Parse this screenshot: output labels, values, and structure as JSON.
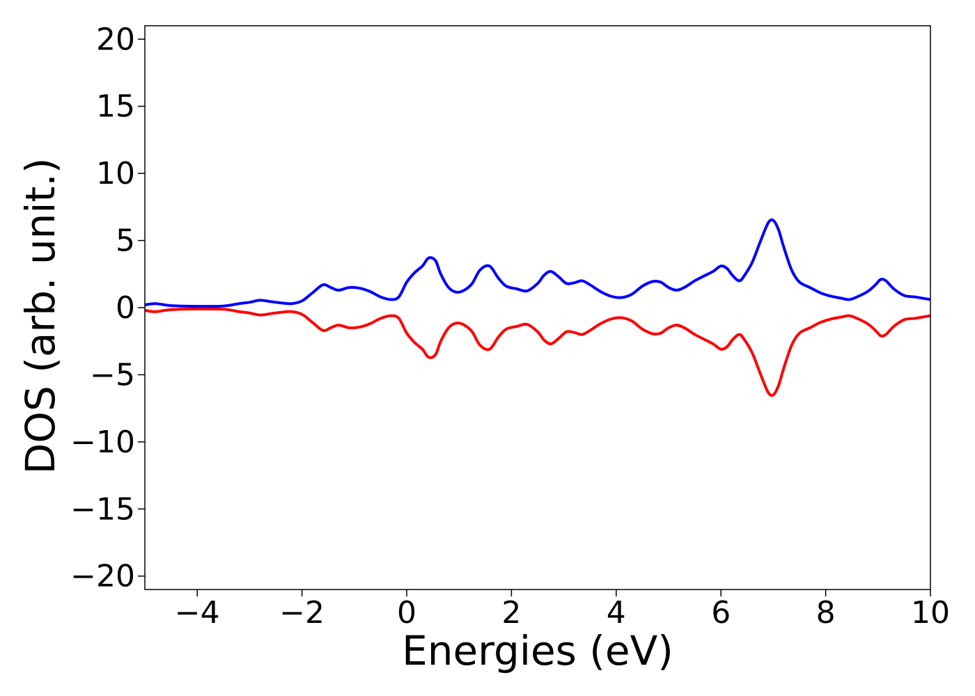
{
  "chart_data": {
    "type": "line",
    "xlabel": "Energies (eV)",
    "ylabel": "DOS (arb. unit.)",
    "xlim": [
      -5,
      10
    ],
    "ylim": [
      -21,
      21
    ],
    "xticks": [
      -4,
      -2,
      0,
      2,
      4,
      6,
      8,
      10
    ],
    "xtick_labels": [
      "−4",
      "−2",
      "0",
      "2",
      "4",
      "6",
      "8",
      "10"
    ],
    "yticks": [
      20,
      15,
      10,
      5,
      0,
      -5,
      -10,
      -15,
      -20
    ],
    "ytick_labels": [
      "20",
      "15",
      "10",
      "5",
      "0",
      "−5",
      "−10",
      "−15",
      "−20"
    ],
    "grid": false,
    "series": [
      {
        "color": "#0000ff",
        "x": [
          -5.0,
          -4.8,
          -4.5,
          -4.0,
          -3.5,
          -3.2,
          -3.0,
          -2.8,
          -2.6,
          -2.4,
          -2.2,
          -2.0,
          -1.8,
          -1.6,
          -1.45,
          -1.3,
          -1.1,
          -0.9,
          -0.7,
          -0.5,
          -0.3,
          -0.15,
          0.0,
          0.15,
          0.3,
          0.42,
          0.55,
          0.65,
          0.8,
          0.95,
          1.1,
          1.25,
          1.4,
          1.58,
          1.75,
          1.9,
          2.1,
          2.3,
          2.5,
          2.62,
          2.75,
          2.9,
          3.05,
          3.2,
          3.35,
          3.5,
          3.7,
          3.9,
          4.1,
          4.3,
          4.5,
          4.7,
          4.85,
          5.0,
          5.15,
          5.3,
          5.5,
          5.7,
          5.85,
          6.0,
          6.12,
          6.22,
          6.35,
          6.45,
          6.6,
          6.75,
          6.9,
          7.0,
          7.1,
          7.2,
          7.35,
          7.5,
          7.7,
          7.9,
          8.1,
          8.3,
          8.45,
          8.6,
          8.8,
          8.95,
          9.05,
          9.15,
          9.3,
          9.5,
          9.7,
          9.85,
          10.0
        ],
        "values": [
          0.2,
          0.3,
          0.15,
          0.1,
          0.12,
          0.3,
          0.4,
          0.55,
          0.45,
          0.35,
          0.3,
          0.5,
          1.1,
          1.7,
          1.5,
          1.3,
          1.5,
          1.45,
          1.2,
          0.8,
          0.6,
          0.8,
          1.9,
          2.6,
          3.1,
          3.7,
          3.5,
          2.5,
          1.5,
          1.15,
          1.3,
          1.8,
          2.8,
          3.1,
          2.2,
          1.6,
          1.4,
          1.25,
          1.8,
          2.4,
          2.7,
          2.3,
          1.8,
          1.85,
          2.0,
          1.7,
          1.2,
          0.85,
          0.75,
          1.0,
          1.6,
          1.95,
          1.9,
          1.5,
          1.3,
          1.5,
          2.0,
          2.4,
          2.7,
          3.1,
          2.9,
          2.4,
          2.0,
          2.4,
          3.4,
          4.9,
          6.3,
          6.5,
          5.8,
          4.5,
          2.8,
          1.9,
          1.5,
          1.1,
          0.85,
          0.7,
          0.6,
          0.8,
          1.2,
          1.7,
          2.1,
          2.0,
          1.4,
          0.9,
          0.8,
          0.7,
          0.6
        ]
      },
      {
        "color": "#ff0000",
        "x": [
          -5.0,
          -4.8,
          -4.5,
          -4.0,
          -3.5,
          -3.2,
          -3.0,
          -2.8,
          -2.6,
          -2.4,
          -2.2,
          -2.0,
          -1.8,
          -1.6,
          -1.45,
          -1.3,
          -1.1,
          -0.9,
          -0.7,
          -0.5,
          -0.3,
          -0.15,
          0.0,
          0.15,
          0.3,
          0.42,
          0.55,
          0.65,
          0.8,
          0.95,
          1.1,
          1.25,
          1.4,
          1.58,
          1.75,
          1.9,
          2.1,
          2.3,
          2.5,
          2.62,
          2.75,
          2.9,
          3.05,
          3.2,
          3.35,
          3.5,
          3.7,
          3.9,
          4.1,
          4.3,
          4.5,
          4.7,
          4.85,
          5.0,
          5.15,
          5.3,
          5.5,
          5.7,
          5.85,
          6.0,
          6.12,
          6.22,
          6.35,
          6.45,
          6.6,
          6.75,
          6.9,
          7.0,
          7.1,
          7.2,
          7.35,
          7.5,
          7.7,
          7.9,
          8.1,
          8.3,
          8.45,
          8.6,
          8.8,
          8.95,
          9.05,
          9.15,
          9.3,
          9.5,
          9.7,
          9.85,
          10.0
        ],
        "values": [
          -0.2,
          -0.3,
          -0.15,
          -0.1,
          -0.12,
          -0.3,
          -0.4,
          -0.55,
          -0.45,
          -0.35,
          -0.3,
          -0.5,
          -1.1,
          -1.7,
          -1.5,
          -1.3,
          -1.5,
          -1.45,
          -1.2,
          -0.8,
          -0.6,
          -0.8,
          -1.9,
          -2.6,
          -3.1,
          -3.7,
          -3.5,
          -2.5,
          -1.5,
          -1.15,
          -1.3,
          -1.8,
          -2.8,
          -3.1,
          -2.2,
          -1.6,
          -1.4,
          -1.25,
          -1.8,
          -2.4,
          -2.7,
          -2.3,
          -1.8,
          -1.85,
          -2.0,
          -1.7,
          -1.2,
          -0.85,
          -0.75,
          -1.0,
          -1.6,
          -1.95,
          -1.9,
          -1.5,
          -1.3,
          -1.5,
          -2.0,
          -2.4,
          -2.7,
          -3.1,
          -2.9,
          -2.4,
          -2.0,
          -2.4,
          -3.4,
          -4.9,
          -6.3,
          -6.5,
          -5.8,
          -4.5,
          -2.8,
          -1.9,
          -1.5,
          -1.1,
          -0.85,
          -0.7,
          -0.6,
          -0.8,
          -1.2,
          -1.7,
          -2.1,
          -2.0,
          -1.4,
          -0.9,
          -0.8,
          -0.7,
          -0.6
        ]
      }
    ]
  }
}
